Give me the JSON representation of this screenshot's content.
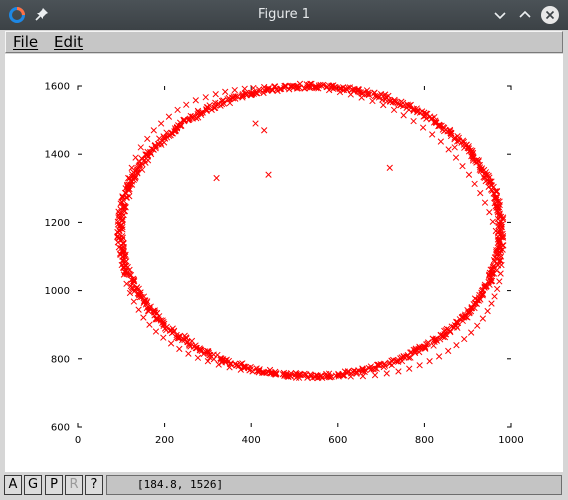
{
  "window": {
    "title": "Figure 1",
    "icons": [
      "app-logo-icon",
      "pin-icon",
      "chevron-down-icon",
      "chevron-up-icon",
      "close-icon"
    ]
  },
  "menu": {
    "file_label": "File",
    "edit_label": "Edit"
  },
  "toolbar": {
    "buttons": [
      {
        "label": "A",
        "enabled": true
      },
      {
        "label": "G",
        "enabled": true
      },
      {
        "label": "P",
        "enabled": true
      },
      {
        "label": "R",
        "enabled": false
      },
      {
        "label": "?",
        "enabled": true
      }
    ],
    "coords_text": "[184.8, 1526]"
  },
  "colors": {
    "marker": "#ff0000",
    "titlebar": "#41474b",
    "close_button": "#e8e8e8"
  },
  "chart_data": {
    "type": "scatter",
    "marker": "x",
    "title": "",
    "xlabel": "",
    "ylabel": "",
    "xlim": [
      0,
      1000
    ],
    "ylim": [
      600,
      1600
    ],
    "xticks": [
      0,
      200,
      400,
      600,
      800,
      1000
    ],
    "yticks": [
      600,
      800,
      1000,
      1200,
      1400,
      1600
    ],
    "grid": false,
    "description_shape": "ellipse",
    "ellipse": {
      "cx": 537,
      "cy": 1175,
      "rx": 440,
      "ry": 425
    },
    "series": [
      {
        "x": [
          97,
          100,
          104,
          110,
          116,
          124,
          133,
          145,
          160,
          175,
          192,
          210,
          230,
          250,
          272,
          295,
          318,
          340,
          362,
          385,
          405,
          430,
          455,
          480,
          505,
          530,
          555,
          580,
          605,
          630,
          655,
          680,
          705,
          730,
          752,
          775,
          797,
          818,
          838,
          856,
          873,
          888,
          903,
          916,
          929,
          940,
          950,
          958,
          965,
          970,
          974,
          977,
          978,
          976,
          973,
          968,
          962,
          955,
          946,
          935,
          922,
          908,
          892,
          874,
          855,
          834,
          812,
          789,
          765,
          740,
          713,
          686,
          658,
          630,
          602,
          575,
          550,
          527,
          505,
          482,
          457,
          430,
          403,
          376,
          350,
          325,
          300,
          277,
          255,
          234,
          215,
          197,
          180,
          165,
          151,
          140,
          129,
          120,
          112,
          106,
          101,
          98,
          410,
          430,
          870,
          720,
          440,
          320
        ],
        "y": [
          1190,
          1230,
          1265,
          1300,
          1330,
          1360,
          1390,
          1420,
          1445,
          1470,
          1490,
          1510,
          1530,
          1545,
          1558,
          1567,
          1576,
          1583,
          1588,
          1592,
          1594,
          1597,
          1598,
          1599,
          1598,
          1596,
          1593,
          1588,
          1582,
          1575,
          1566,
          1556,
          1544,
          1530,
          1514,
          1497,
          1478,
          1458,
          1437,
          1414,
          1390,
          1365,
          1340,
          1313,
          1286,
          1258,
          1230,
          1202,
          1175,
          1150,
          1125,
          1100,
          1075,
          1050,
          1027,
          1005,
          983,
          962,
          940,
          918,
          897,
          877,
          858,
          840,
          823,
          807,
          793,
          781,
          771,
          763,
          757,
          752,
          749,
          748,
          748,
          750,
          752,
          754,
          755,
          756,
          757,
          759,
          763,
          768,
          775,
          783,
          793,
          803,
          815,
          829,
          845,
          862,
          880,
          900,
          921,
          944,
          968,
          993,
          1020,
          1047,
          1075,
          1105,
          1490,
          1470,
          1420,
          1360,
          1340,
          1330
        ]
      }
    ]
  }
}
